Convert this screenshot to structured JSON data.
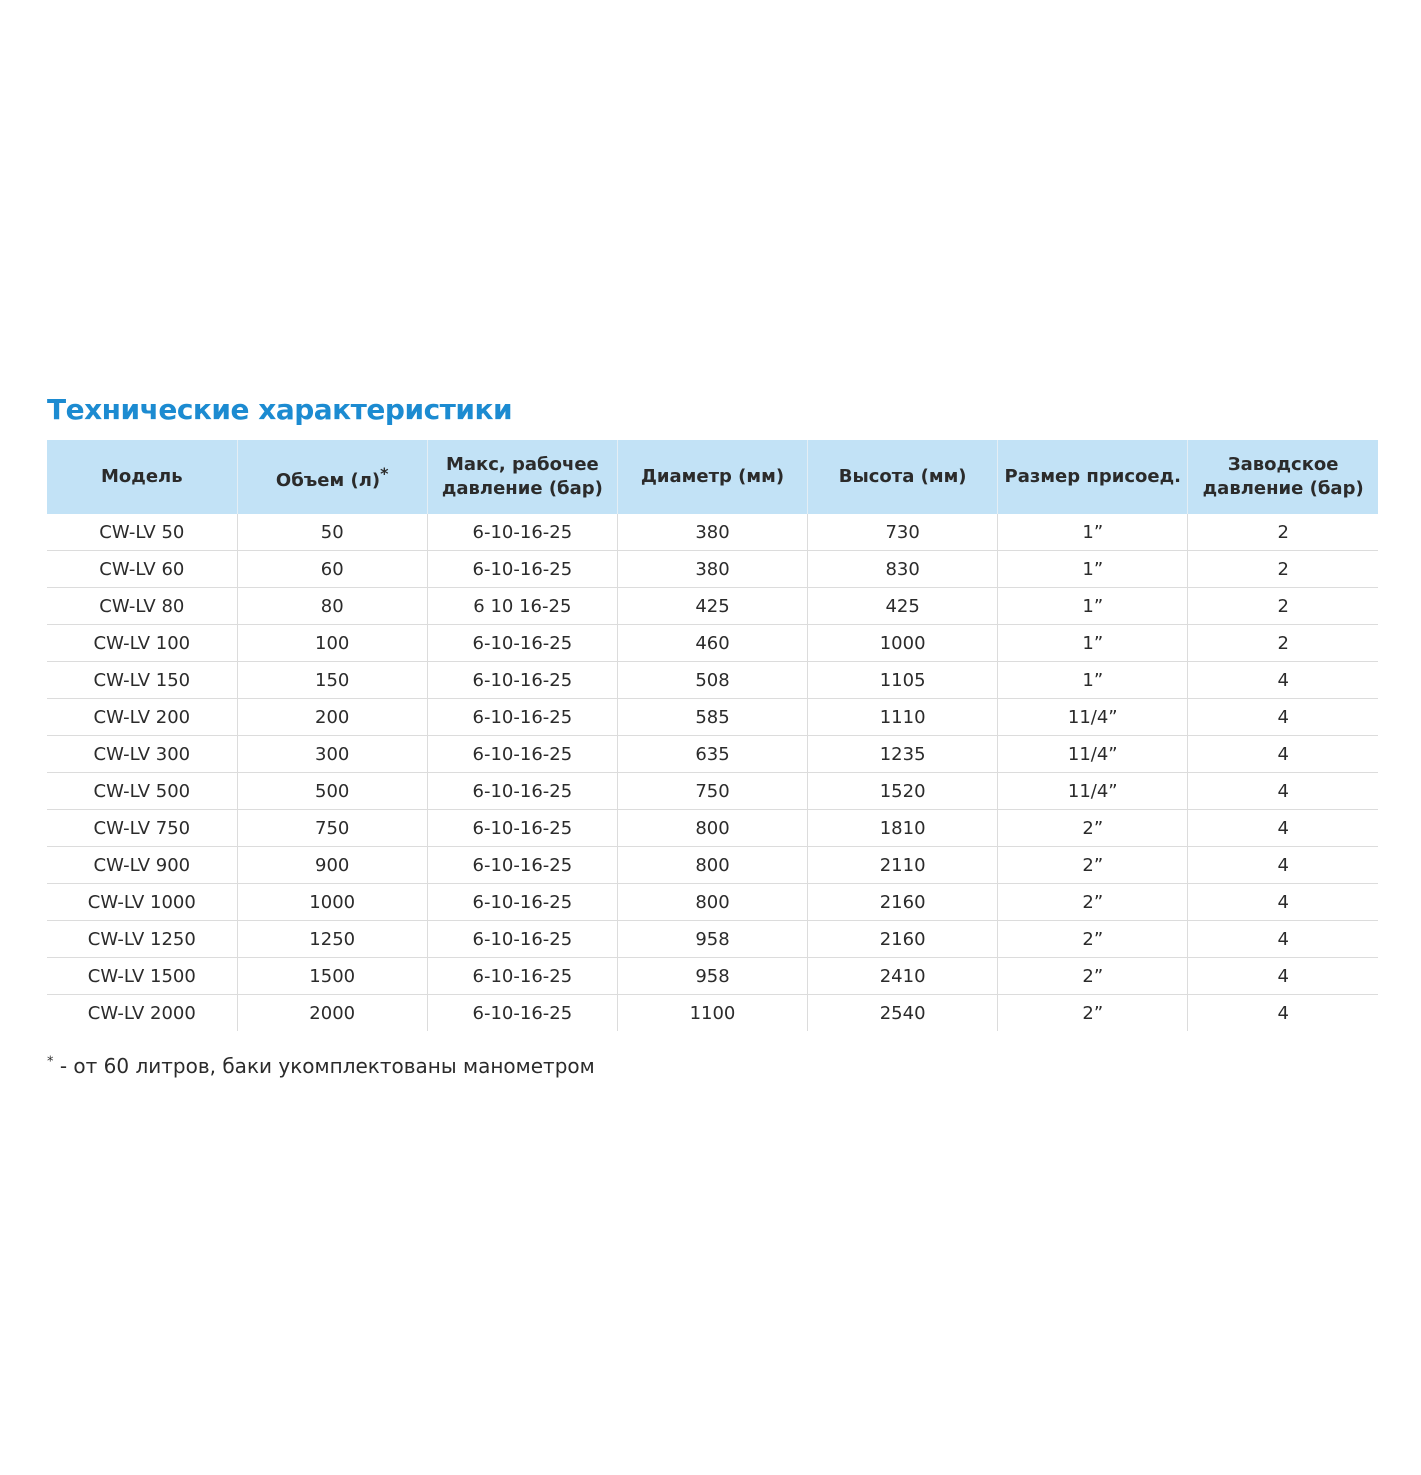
{
  "title": "Технические характеристики",
  "accent_color": "#1c8bd1",
  "header_bg": "#c2e2f6",
  "table": {
    "headers": [
      {
        "label": "Модель"
      },
      {
        "label": "Объем (л)",
        "sup": "*"
      },
      {
        "label": "Макс, рабочее давление (бар)"
      },
      {
        "label": "Диаметр (мм)"
      },
      {
        "label": "Высота (мм)"
      },
      {
        "label": "Размер присоед."
      },
      {
        "label": "Заводское давление (бар)"
      }
    ],
    "rows": [
      [
        "CW-LV 50",
        "50",
        "6-10-16-25",
        "380",
        "730",
        "1”",
        "2"
      ],
      [
        "CW-LV 60",
        "60",
        "6-10-16-25",
        "380",
        "830",
        "1”",
        "2"
      ],
      [
        "CW-LV 80",
        "80",
        "6 10 16-25",
        "425",
        "425",
        "1”",
        "2"
      ],
      [
        "CW-LV 100",
        "100",
        "6-10-16-25",
        "460",
        "1000",
        "1”",
        "2"
      ],
      [
        "CW-LV 150",
        "150",
        "6-10-16-25",
        "508",
        "1105",
        "1”",
        "4"
      ],
      [
        "CW-LV 200",
        "200",
        "6-10-16-25",
        "585",
        "1110",
        "11/4”",
        "4"
      ],
      [
        "CW-LV 300",
        "300",
        "6-10-16-25",
        "635",
        "1235",
        "11/4”",
        "4"
      ],
      [
        "CW-LV 500",
        "500",
        "6-10-16-25",
        "750",
        "1520",
        "11/4”",
        "4"
      ],
      [
        "CW-LV 750",
        "750",
        "6-10-16-25",
        "800",
        "1810",
        "2”",
        "4"
      ],
      [
        "CW-LV 900",
        "900",
        "6-10-16-25",
        "800",
        "2110",
        "2”",
        "4"
      ],
      [
        "CW-LV 1000",
        "1000",
        "6-10-16-25",
        "800",
        "2160",
        "2”",
        "4"
      ],
      [
        "CW-LV 1250",
        "1250",
        "6-10-16-25",
        "958",
        "2160",
        "2”",
        "4"
      ],
      [
        "CW-LV 1500",
        "1500",
        "6-10-16-25",
        "958",
        "2410",
        "2”",
        "4"
      ],
      [
        "CW-LV 2000",
        "2000",
        "6-10-16-25",
        "1100",
        "2540",
        "2”",
        "4"
      ]
    ]
  },
  "footnote": {
    "mark": "*",
    "text": " - от 60 литров, баки укомплектованы манометром"
  }
}
